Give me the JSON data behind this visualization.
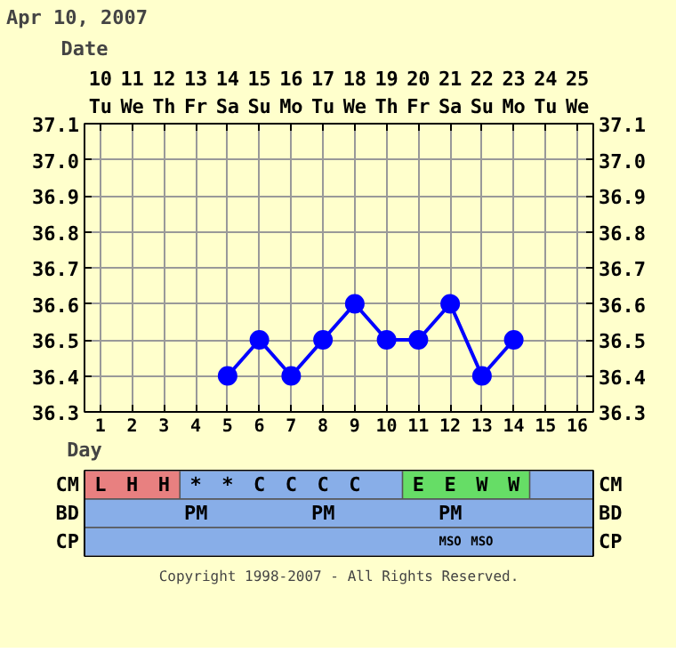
{
  "chart_data": [
    {
      "type": "line",
      "title": "Apr 10, 2007",
      "xlabel": "Day",
      "x2label": "Date",
      "xlim": [
        0.5,
        16.5
      ],
      "xticks": [
        1,
        2,
        3,
        4,
        5,
        6,
        7,
        8,
        9,
        10,
        11,
        12,
        13,
        14,
        15,
        16
      ],
      "x2lim": [
        "2007-04-09T12:00",
        "2007-04-25T12:00"
      ],
      "x2ticks": [
        {
          "value": "2007-04-10",
          "label": "10\nTu"
        },
        {
          "value": "2007-04-11",
          "label": "11\nWe"
        },
        {
          "value": "2007-04-12",
          "label": "12\nTh"
        },
        {
          "value": "2007-04-13",
          "label": "13\nFr"
        },
        {
          "value": "2007-04-14",
          "label": "14\nSa"
        },
        {
          "value": "2007-04-15",
          "label": "15\nSu"
        },
        {
          "value": "2007-04-16",
          "label": "16\nMo"
        },
        {
          "value": "2007-04-17",
          "label": "17\nTu"
        },
        {
          "value": "2007-04-18",
          "label": "18\nWe"
        },
        {
          "value": "2007-04-19",
          "label": "19\nTh"
        },
        {
          "value": "2007-04-20",
          "label": "20\nFr"
        },
        {
          "value": "2007-04-21",
          "label": "21\nSa"
        },
        {
          "value": "2007-04-22",
          "label": "22\nSu"
        },
        {
          "value": "2007-04-23",
          "label": "23\nMo"
        },
        {
          "value": "2007-04-24",
          "label": "24\nTu"
        },
        {
          "value": "2007-04-25",
          "label": "25\nWe"
        }
      ],
      "series": [
        {
          "color": "#0000ff",
          "x": [
            5,
            6,
            7,
            8,
            9,
            10,
            11,
            12,
            13,
            14
          ],
          "values": [
            36.4,
            36.5,
            36.4,
            36.5,
            36.6,
            36.5,
            36.5,
            36.6,
            36.4,
            36.5
          ]
        }
      ],
      "ylim": [
        36.3,
        37.1
      ],
      "yticks": [
        {
          "value": 36.3,
          "label": "36.3"
        },
        {
          "value": 36.4,
          "label": "36.4"
        },
        {
          "value": 36.5,
          "label": "36.5"
        },
        {
          "value": 36.6,
          "label": "36.6"
        },
        {
          "value": 36.7,
          "label": "36.7"
        },
        {
          "value": 36.8,
          "label": "36.8"
        },
        {
          "value": 36.9,
          "label": "36.9"
        },
        {
          "value": 37.0,
          "label": "37.0"
        },
        {
          "value": 37.1,
          "label": "37.1"
        }
      ],
      "y2lim": [
        36.3,
        37.1
      ],
      "y2ticks": [
        {
          "value": 36.3,
          "label": "36.3"
        },
        {
          "value": 36.4,
          "label": "36.4"
        },
        {
          "value": 36.5,
          "label": "36.5"
        },
        {
          "value": 36.6,
          "label": "36.6"
        },
        {
          "value": 36.7,
          "label": "36.7"
        },
        {
          "value": 36.8,
          "label": "36.8"
        },
        {
          "value": 36.9,
          "label": "36.9"
        },
        {
          "value": 37.0,
          "label": "37.0"
        },
        {
          "value": 37.1,
          "label": "37.1"
        }
      ],
      "grid": true,
      "marker": "circle",
      "line_style": "solid"
    },
    {
      "type": "other",
      "y_categories": [
        "CM",
        "BD",
        "CP"
      ],
      "y2_categories": [
        "CM",
        "BD",
        "CP"
      ],
      "cell_labels": [
        [
          "L",
          "H",
          "H",
          "*",
          "*",
          "C",
          "C",
          "C",
          "C",
          null,
          "E",
          "E",
          "W",
          "W",
          null,
          null
        ],
        [
          null,
          null,
          null,
          "PM",
          null,
          null,
          null,
          "PM",
          null,
          null,
          null,
          "PM",
          null,
          null,
          null,
          null
        ],
        [
          null,
          null,
          null,
          null,
          null,
          null,
          null,
          null,
          null,
          null,
          null,
          "MSO",
          "MSO",
          null,
          null,
          null
        ]
      ],
      "colors": [
        [
          "#e88080",
          "#e88080",
          "#e88080",
          "#88aee8",
          "#88aee8",
          "#88aee8",
          "#88aee8",
          "#88aee8",
          "#88aee8",
          "#88aee8",
          "#66dd66",
          "#66dd66",
          "#66dd66",
          "#66dd66",
          "#88aee8",
          "#88aee8"
        ],
        [
          "#88aee8",
          "#88aee8",
          "#88aee8",
          "#88aee8",
          "#88aee8",
          "#88aee8",
          "#88aee8",
          "#88aee8",
          "#88aee8",
          "#88aee8",
          "#88aee8",
          "#88aee8",
          "#88aee8",
          "#88aee8",
          "#88aee8",
          "#88aee8"
        ],
        [
          "#88aee8",
          "#88aee8",
          "#88aee8",
          "#88aee8",
          "#88aee8",
          "#88aee8",
          "#88aee8",
          "#88aee8",
          "#88aee8",
          "#88aee8",
          "#88aee8",
          "#88aee8",
          "#88aee8",
          "#88aee8",
          "#88aee8",
          "#88aee8"
        ]
      ],
      "annotations": [
        "Copyright 1998-2007 - All Rights Reserved."
      ]
    }
  ]
}
